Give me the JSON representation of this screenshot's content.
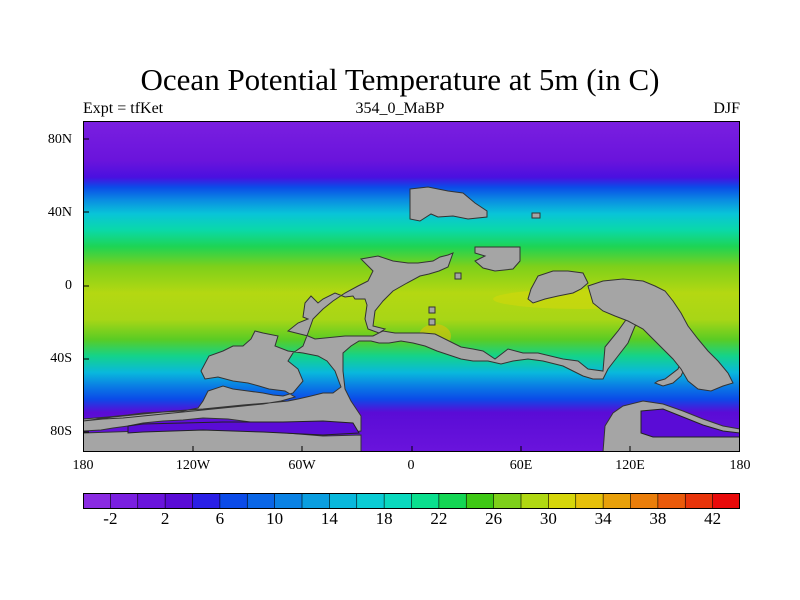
{
  "title": "Ocean Potential Temperature at 5m (in C)",
  "subtitle_left": "Expt = tfKet",
  "subtitle_center": "354_0_MaBP",
  "subtitle_right": "DJF",
  "map": {
    "type": "heatmap",
    "projection": "cylindrical-equidistant",
    "lon_range": [
      -180,
      180
    ],
    "lat_range": [
      -90,
      90
    ],
    "land_color": "#a5a5a5",
    "y_ticks": [
      "80N",
      "40N",
      "0",
      "40S",
      "80S"
    ],
    "x_ticks": [
      "180",
      "120W",
      "60W",
      "0",
      "60E",
      "120E",
      "180"
    ],
    "sst_by_latitude_c": [
      {
        "lat": 90,
        "value": -1.5
      },
      {
        "lat": 70,
        "value": -0.5
      },
      {
        "lat": 60,
        "value": 4
      },
      {
        "lat": 50,
        "value": 11
      },
      {
        "lat": 40,
        "value": 17
      },
      {
        "lat": 30,
        "value": 22
      },
      {
        "lat": 20,
        "value": 25
      },
      {
        "lat": 0,
        "value": 29
      },
      {
        "lat": -20,
        "value": 28
      },
      {
        "lat": -35,
        "value": 24
      },
      {
        "lat": -45,
        "value": 20
      },
      {
        "lat": -55,
        "value": 16
      },
      {
        "lat": -65,
        "value": 10
      },
      {
        "lat": -75,
        "value": 2
      },
      {
        "lat": -82,
        "value": -2
      }
    ]
  },
  "colorbar": {
    "labels": [
      "-2",
      "2",
      "6",
      "10",
      "14",
      "18",
      "22",
      "26",
      "30",
      "34",
      "38",
      "42"
    ],
    "label_values": [
      -2,
      2,
      6,
      10,
      14,
      18,
      22,
      26,
      30,
      34,
      38,
      42
    ],
    "range": [
      -4,
      44
    ],
    "colors": [
      "#8a2be2",
      "#7a1fe0",
      "#6a14dc",
      "#5a0cd6",
      "#2a1fe6",
      "#0b4be8",
      "#0a66e6",
      "#0a82e4",
      "#0a9ee0",
      "#09b8dc",
      "#0accd4",
      "#0ad9be",
      "#0adf8e",
      "#14d654",
      "#3ec814",
      "#7ed01a",
      "#b0d812",
      "#d6d60a",
      "#e6c00a",
      "#e8a00a",
      "#ea7e0a",
      "#ea5a0a",
      "#e8340a",
      "#e80a0a"
    ]
  }
}
